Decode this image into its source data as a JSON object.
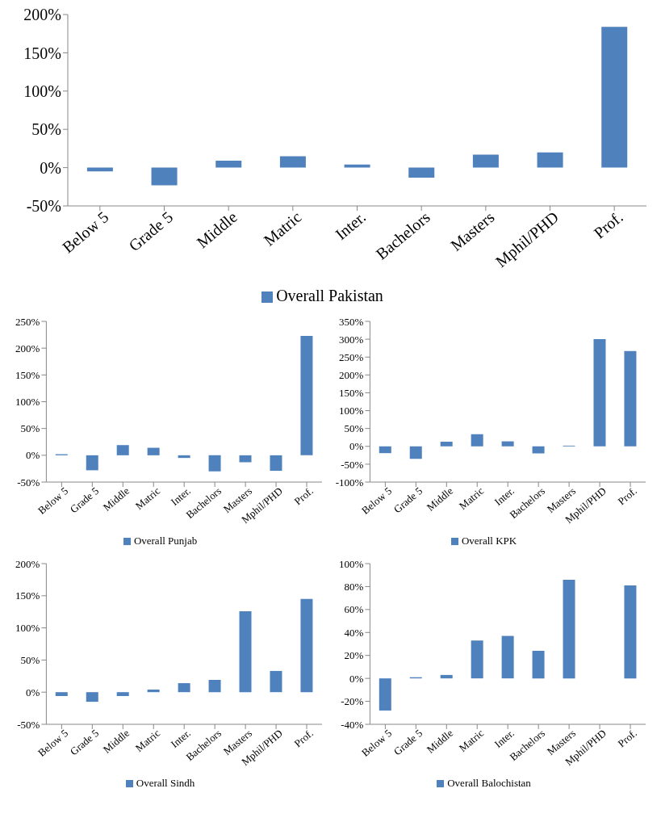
{
  "chart_data": [
    {
      "type": "bar",
      "categories": [
        "Below 5",
        "Grade 5",
        "Middle",
        "Matric",
        "Inter.",
        "Bachelors",
        "Masters",
        "Mphil/PHD",
        "Prof."
      ],
      "series": [
        {
          "name": "Overall Pakistan",
          "color": "#4f81bd",
          "values": [
            -5,
            -23,
            9,
            15,
            4,
            -13,
            17,
            20,
            184
          ]
        }
      ],
      "ylim": [
        -50,
        200
      ],
      "yticks": [
        {
          "value": -50,
          "label": "-50%"
        },
        {
          "value": 0,
          "label": "0%"
        },
        {
          "value": 50,
          "label": "50%"
        },
        {
          "value": 100,
          "label": "100%"
        },
        {
          "value": 150,
          "label": "150%"
        },
        {
          "value": 200,
          "label": "200%"
        }
      ],
      "legend": "bottom"
    },
    {
      "type": "bar",
      "categories": [
        "Below 5",
        "Grade 5",
        "Middle",
        "Matric",
        "Inter.",
        "Bachelors",
        "Masters",
        "Mphil/PHD",
        "Prof."
      ],
      "series": [
        {
          "name": "Overall Punjab",
          "color": "#4f81bd",
          "values": [
            2,
            -28,
            19,
            14,
            -5,
            -30,
            -13,
            -29,
            223
          ]
        }
      ],
      "ylim": [
        -50,
        250
      ],
      "yticks": [
        {
          "value": -50,
          "label": "-50%"
        },
        {
          "value": 0,
          "label": "0%"
        },
        {
          "value": 50,
          "label": "50%"
        },
        {
          "value": 100,
          "label": "100%"
        },
        {
          "value": 150,
          "label": "150%"
        },
        {
          "value": 200,
          "label": "200%"
        },
        {
          "value": 250,
          "label": "250%"
        }
      ],
      "legend": "bottom"
    },
    {
      "type": "bar",
      "categories": [
        "Below 5",
        "Grade 5",
        "Middle",
        "Matric",
        "Inter.",
        "Bachelors",
        "Masters",
        "Mphil/PHD",
        "Prof."
      ],
      "series": [
        {
          "name": "Overall KPK",
          "color": "#4f81bd",
          "values": [
            -19,
            -35,
            13,
            34,
            14,
            -20,
            2,
            300,
            267
          ]
        }
      ],
      "ylim": [
        -100,
        350
      ],
      "yticks": [
        {
          "value": -100,
          "label": "-100%"
        },
        {
          "value": -50,
          "label": "-50%"
        },
        {
          "value": 0,
          "label": "0%"
        },
        {
          "value": 50,
          "label": "50%"
        },
        {
          "value": 100,
          "label": "100%"
        },
        {
          "value": 150,
          "label": "150%"
        },
        {
          "value": 200,
          "label": "200%"
        },
        {
          "value": 250,
          "label": "250%"
        },
        {
          "value": 300,
          "label": "300%"
        },
        {
          "value": 350,
          "label": "350%"
        }
      ],
      "legend": "bottom"
    },
    {
      "type": "bar",
      "categories": [
        "Below 5",
        "Grade 5",
        "Middle",
        "Matric",
        "Inter.",
        "Bachelors",
        "Masters",
        "Mphil/PHD",
        "Prof."
      ],
      "series": [
        {
          "name": "Overall Sindh",
          "color": "#4f81bd",
          "values": [
            -6,
            -15,
            -6,
            4,
            14,
            19,
            126,
            33,
            145
          ]
        }
      ],
      "ylim": [
        -50,
        200
      ],
      "yticks": [
        {
          "value": -50,
          "label": "-50%"
        },
        {
          "value": 0,
          "label": "0%"
        },
        {
          "value": 50,
          "label": "50%"
        },
        {
          "value": 100,
          "label": "100%"
        },
        {
          "value": 150,
          "label": "150%"
        },
        {
          "value": 200,
          "label": "200%"
        }
      ],
      "legend": "bottom"
    },
    {
      "type": "bar",
      "categories": [
        "Below 5",
        "Grade 5",
        "Middle",
        "Matric",
        "Inter.",
        "Bachelors",
        "Masters",
        "Mphil/PHD",
        "Prof."
      ],
      "series": [
        {
          "name": "Overall Balochistan",
          "color": "#4f81bd",
          "values": [
            -28,
            1,
            3,
            33,
            37,
            24,
            86,
            0,
            81
          ]
        }
      ],
      "ylim": [
        -40,
        100
      ],
      "yticks": [
        {
          "value": -40,
          "label": "-40%"
        },
        {
          "value": -20,
          "label": "-20%"
        },
        {
          "value": 0,
          "label": "0%"
        },
        {
          "value": 20,
          "label": "20%"
        },
        {
          "value": 40,
          "label": "40%"
        },
        {
          "value": 60,
          "label": "60%"
        },
        {
          "value": 80,
          "label": "80%"
        },
        {
          "value": 100,
          "label": "100%"
        }
      ],
      "legend": "bottom"
    }
  ]
}
